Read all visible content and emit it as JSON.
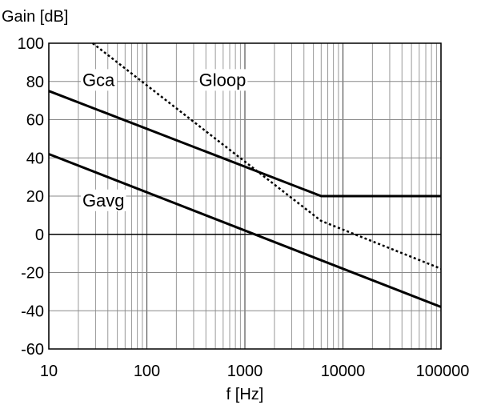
{
  "chart_data": {
    "type": "line",
    "xscale": "log",
    "xlim": [
      10,
      100000
    ],
    "ylim": [
      -60,
      100
    ],
    "grid": true,
    "xlabel": "f [Hz]",
    "ylabel": "Gain [dB]",
    "xticks": [
      10,
      100,
      1000,
      10000,
      100000
    ],
    "xtick_labels": [
      "10",
      "100",
      "1000",
      "10000",
      "100000"
    ],
    "yticks": [
      -60,
      -40,
      -20,
      0,
      20,
      40,
      60,
      80,
      100
    ],
    "ytick_labels": [
      "-60",
      "-40",
      "-20",
      "0",
      "20",
      "40",
      "60",
      "80",
      "100"
    ],
    "series": [
      {
        "name": "Gca",
        "style": "solid",
        "color": "#000000",
        "x": [
          10,
          6000,
          100000
        ],
        "y": [
          75,
          20,
          20
        ]
      },
      {
        "name": "Gavg",
        "style": "solid",
        "color": "#000000",
        "x": [
          10,
          100000
        ],
        "y": [
          42,
          -38
        ]
      },
      {
        "name": "Gloop",
        "style": "dotted",
        "color": "#000000",
        "x": [
          28,
          1500,
          6000,
          100000
        ],
        "y": [
          100,
          31,
          7,
          -18
        ]
      }
    ],
    "annotations": [
      {
        "text": "Gca",
        "x": 22,
        "y": 81
      },
      {
        "text": "Gloop",
        "x": 340,
        "y": 81
      },
      {
        "text": "Gavg",
        "x": 22,
        "y": 18
      }
    ]
  }
}
